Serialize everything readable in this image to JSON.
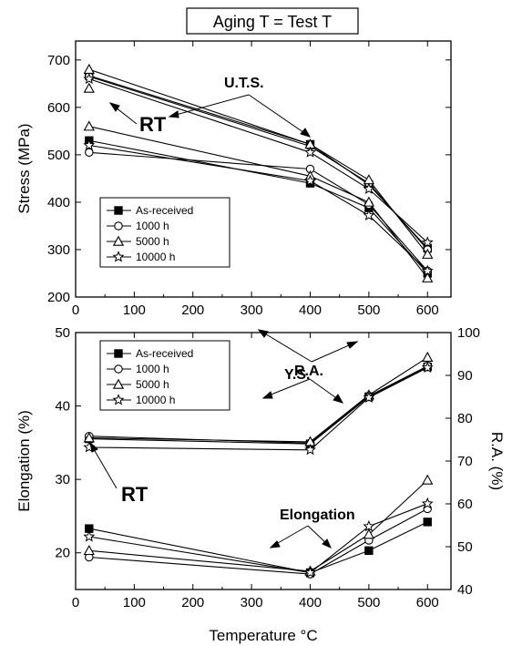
{
  "figure_title": "Aging T = Test T",
  "legend_labels": [
    "As-received",
    "1000 h",
    "5000 h",
    "10000 h"
  ],
  "colors": {
    "line": "#000000",
    "background": "#ffffff"
  },
  "chart_data": [
    {
      "type": "line",
      "xlabel": "",
      "ylabel": "Stress (MPa)",
      "xlim": [
        0,
        640
      ],
      "ylim": [
        200,
        740
      ],
      "xticks": [
        0,
        100,
        200,
        300,
        400,
        500,
        600
      ],
      "yticks": [
        200,
        300,
        400,
        500,
        600,
        700
      ],
      "legend_position": "bottom-left",
      "annotations": {
        "uts": "U.T.S.",
        "ys": "Y.S.",
        "rt": "RT"
      },
      "x": [
        23,
        400,
        500,
        600
      ],
      "series": [
        {
          "name": "As-received",
          "marker": "filled-square",
          "group": "U.T.S.",
          "values": [
            667,
            522,
            437,
            303
          ]
        },
        {
          "name": "1000 h",
          "marker": "open-circle",
          "group": "U.T.S.",
          "values": [
            665,
            518,
            440,
            300
          ]
        },
        {
          "name": "5000 h",
          "marker": "open-triangle",
          "group": "U.T.S.",
          "values": [
            680,
            522,
            447,
            290
          ]
        },
        {
          "name": "10000 h",
          "marker": "open-star",
          "group": "U.T.S.",
          "values": [
            660,
            505,
            428,
            315
          ]
        },
        {
          "name": "As-received",
          "marker": "filled-square",
          "group": "Y.S.",
          "values": [
            530,
            440,
            388,
            250
          ]
        },
        {
          "name": "1000 h",
          "marker": "open-circle",
          "group": "Y.S.",
          "values": [
            505,
            470,
            395,
            255
          ]
        },
        {
          "name": "5000 h",
          "marker": "open-triangle",
          "group": "Y.S.",
          "values": [
            560,
            455,
            400,
            240
          ]
        },
        {
          "name": "10000 h",
          "marker": "open-star",
          "group": "Y.S.",
          "values": [
            520,
            445,
            372,
            255
          ]
        },
        {
          "name": "5000 h",
          "marker": "open-triangle",
          "group": "Y.S.",
          "values": [
            640,
            null,
            null,
            null
          ]
        }
      ]
    },
    {
      "type": "line",
      "xlabel": "Temperature °C",
      "ylabel": "Elongation (%)",
      "y2label": "R.A. (%)",
      "xlim": [
        0,
        640
      ],
      "ylim": [
        15,
        50
      ],
      "y2lim": [
        40,
        100
      ],
      "xticks": [
        0,
        100,
        200,
        300,
        400,
        500,
        600
      ],
      "yticks": [
        20,
        30,
        40,
        50
      ],
      "y2ticks": [
        40,
        50,
        60,
        70,
        80,
        90,
        100
      ],
      "legend_position": "top-left",
      "annotations": {
        "ra": "R.A.",
        "elongation": "Elongation",
        "rt": "RT"
      },
      "x": [
        23,
        400,
        500,
        600
      ],
      "series": [
        {
          "name": "As-received",
          "marker": "filled-square",
          "group": "R.A.",
          "axis": "right",
          "values": [
            75.2,
            74,
            85,
            92
          ]
        },
        {
          "name": "1000 h",
          "marker": "open-circle",
          "group": "R.A.",
          "axis": "right",
          "values": [
            75.8,
            74.2,
            85.2,
            92.2
          ]
        },
        {
          "name": "5000 h",
          "marker": "open-triangle",
          "group": "R.A.",
          "axis": "right",
          "values": [
            75.4,
            74.5,
            85.4,
            94.2
          ]
        },
        {
          "name": "10000 h",
          "marker": "open-star",
          "group": "R.A.",
          "axis": "right",
          "values": [
            73.2,
            72.6,
            84.8,
            91.8
          ]
        },
        {
          "name": "As-received",
          "marker": "filled-square",
          "group": "Elongation",
          "axis": "left",
          "values": [
            23.3,
            17.3,
            20.3,
            24.2
          ]
        },
        {
          "name": "1000 h",
          "marker": "open-circle",
          "group": "Elongation",
          "axis": "left",
          "values": [
            19.4,
            17.1,
            21.7,
            26.0
          ]
        },
        {
          "name": "5000 h",
          "marker": "open-triangle",
          "group": "Elongation",
          "axis": "left",
          "values": [
            20.3,
            17.5,
            22.5,
            29.9
          ]
        },
        {
          "name": "10000 h",
          "marker": "open-star",
          "group": "Elongation",
          "axis": "left",
          "values": [
            22.2,
            17.3,
            23.6,
            26.7
          ]
        }
      ]
    }
  ]
}
